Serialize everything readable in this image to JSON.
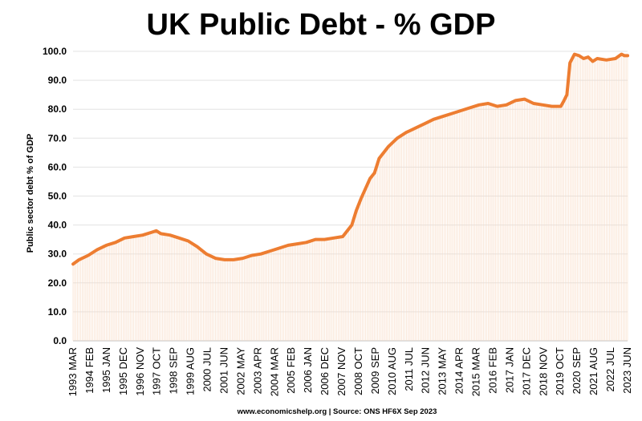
{
  "chart_data": {
    "type": "line",
    "title": "UK Public Debt - % GDP",
    "ylabel": "Public sector debt % of GDP",
    "xlabel": "",
    "source": "www.economicshelp.org | Source: ONS HF6X Sep 2023",
    "ylim": [
      0,
      100
    ],
    "ytick_labels": [
      "0.0",
      "10.0",
      "20.0",
      "30.0",
      "40.0",
      "50.0",
      "60.0",
      "70.0",
      "80.0",
      "90.0",
      "100.0"
    ],
    "x_tick_labels": [
      "1993 MAR",
      "1994 FEB",
      "1995 JAN",
      "1995 DEC",
      "1996 NOV",
      "1997 OCT",
      "1998 SEP",
      "1999 AUG",
      "2000 JUL",
      "2001 JUN",
      "2002 MAY",
      "2003 APR",
      "2004 MAR",
      "2005 FEB",
      "2006 JAN",
      "2006 DEC",
      "2007 NOV",
      "2008 OCT",
      "2009 SEP",
      "2010 AUG",
      "2011 JUL",
      "2012 JUN",
      "2013 MAY",
      "2014 APR",
      "2015 MAR",
      "2016 FEB",
      "2017 JAN",
      "2017 DEC",
      "2018 NOV",
      "2019 OCT",
      "2020 SEP",
      "2021 AUG",
      "2022 JUL",
      "2023 JUN"
    ],
    "x_start": 1993.167,
    "x_end": 2023.667,
    "series": [
      {
        "name": "Public sector debt % of GDP",
        "color": "#ED7D31",
        "points": [
          [
            1993.17,
            26.5
          ],
          [
            1993.5,
            28.0
          ],
          [
            1994.0,
            29.5
          ],
          [
            1994.5,
            31.5
          ],
          [
            1995.0,
            33.0
          ],
          [
            1995.5,
            34.0
          ],
          [
            1996.0,
            35.5
          ],
          [
            1996.5,
            36.0
          ],
          [
            1997.0,
            36.5
          ],
          [
            1997.5,
            37.5
          ],
          [
            1997.75,
            38.0
          ],
          [
            1998.0,
            37.0
          ],
          [
            1998.5,
            36.5
          ],
          [
            1999.0,
            35.5
          ],
          [
            1999.5,
            34.5
          ],
          [
            2000.0,
            32.5
          ],
          [
            2000.5,
            30.0
          ],
          [
            2001.0,
            28.5
          ],
          [
            2001.5,
            28.0
          ],
          [
            2002.0,
            28.0
          ],
          [
            2002.5,
            28.5
          ],
          [
            2003.0,
            29.5
          ],
          [
            2003.5,
            30.0
          ],
          [
            2004.0,
            31.0
          ],
          [
            2004.5,
            32.0
          ],
          [
            2005.0,
            33.0
          ],
          [
            2005.5,
            33.5
          ],
          [
            2006.0,
            34.0
          ],
          [
            2006.5,
            35.0
          ],
          [
            2007.0,
            35.0
          ],
          [
            2007.5,
            35.5
          ],
          [
            2008.0,
            36.0
          ],
          [
            2008.5,
            40.0
          ],
          [
            2008.75,
            45.0
          ],
          [
            2009.0,
            49.0
          ],
          [
            2009.5,
            56.0
          ],
          [
            2009.75,
            58.0
          ],
          [
            2010.0,
            63.0
          ],
          [
            2010.5,
            67.0
          ],
          [
            2011.0,
            70.0
          ],
          [
            2011.5,
            72.0
          ],
          [
            2012.0,
            73.5
          ],
          [
            2012.5,
            75.0
          ],
          [
            2013.0,
            76.5
          ],
          [
            2013.5,
            77.5
          ],
          [
            2014.0,
            78.5
          ],
          [
            2014.5,
            79.5
          ],
          [
            2015.0,
            80.5
          ],
          [
            2015.5,
            81.5
          ],
          [
            2016.0,
            82.0
          ],
          [
            2016.5,
            81.0
          ],
          [
            2017.0,
            81.5
          ],
          [
            2017.5,
            83.0
          ],
          [
            2018.0,
            83.5
          ],
          [
            2018.5,
            82.0
          ],
          [
            2019.0,
            81.5
          ],
          [
            2019.5,
            81.0
          ],
          [
            2020.0,
            81.0
          ],
          [
            2020.17,
            83.0
          ],
          [
            2020.33,
            85.0
          ],
          [
            2020.5,
            96.0
          ],
          [
            2020.75,
            99.0
          ],
          [
            2021.0,
            98.5
          ],
          [
            2021.25,
            97.5
          ],
          [
            2021.5,
            98.0
          ],
          [
            2021.75,
            96.5
          ],
          [
            2022.0,
            97.5
          ],
          [
            2022.5,
            97.0
          ],
          [
            2023.0,
            97.5
          ],
          [
            2023.33,
            99.0
          ],
          [
            2023.5,
            98.5
          ],
          [
            2023.67,
            98.5
          ]
        ]
      }
    ]
  }
}
